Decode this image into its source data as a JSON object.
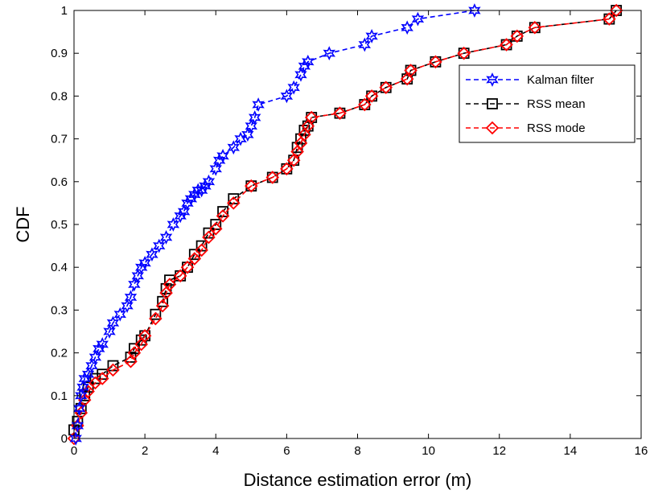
{
  "chart_data": {
    "type": "line",
    "title": "",
    "xlabel": "Distance estimation error (m)",
    "ylabel": "CDF",
    "xlim": [
      0,
      16
    ],
    "ylim": [
      0,
      1
    ],
    "xticks": [
      "0",
      "2",
      "4",
      "6",
      "8",
      "10",
      "12",
      "14",
      "16"
    ],
    "yticks": [
      "0",
      "0.1",
      "0.2",
      "0.3",
      "0.4",
      "0.5",
      "0.6",
      "0.7",
      "0.8",
      "0.9",
      "1"
    ],
    "grid": false,
    "legend_position": "top-right",
    "series": [
      {
        "name": "Kalman filter",
        "color": "#0000ff",
        "marker": "hexagram",
        "line_style": "dashed",
        "x": [
          0.05,
          0.1,
          0.15,
          0.2,
          0.25,
          0.3,
          0.4,
          0.5,
          0.6,
          0.7,
          0.8,
          1.0,
          1.1,
          1.3,
          1.5,
          1.6,
          1.7,
          1.8,
          1.9,
          2.0,
          2.2,
          2.4,
          2.6,
          2.8,
          3.0,
          3.1,
          3.2,
          3.3,
          3.4,
          3.5,
          3.6,
          3.7,
          3.8,
          4.0,
          4.1,
          4.2,
          4.5,
          4.7,
          4.9,
          5.0,
          5.1,
          5.2,
          6.0,
          6.2,
          6.4,
          6.5,
          6.6,
          7.2,
          8.2,
          8.4,
          9.4,
          9.7,
          11.3
        ],
        "y": [
          0.0,
          0.03,
          0.07,
          0.1,
          0.12,
          0.14,
          0.15,
          0.17,
          0.19,
          0.21,
          0.22,
          0.25,
          0.27,
          0.29,
          0.31,
          0.33,
          0.36,
          0.38,
          0.4,
          0.41,
          0.43,
          0.45,
          0.47,
          0.5,
          0.52,
          0.53,
          0.55,
          0.56,
          0.57,
          0.58,
          0.58,
          0.59,
          0.6,
          0.63,
          0.65,
          0.66,
          0.68,
          0.7,
          0.71,
          0.73,
          0.75,
          0.78,
          0.8,
          0.82,
          0.85,
          0.87,
          0.88,
          0.9,
          0.92,
          0.94,
          0.96,
          0.98,
          1.0
        ]
      },
      {
        "name": "RSS mean",
        "color": "#000000",
        "marker": "square",
        "line_style": "dashed",
        "x": [
          0.0,
          0.1,
          0.2,
          0.3,
          0.4,
          0.6,
          0.8,
          1.1,
          1.6,
          1.7,
          1.9,
          2.0,
          2.3,
          2.5,
          2.6,
          2.7,
          3.0,
          3.2,
          3.4,
          3.6,
          3.8,
          4.0,
          4.2,
          4.5,
          5.0,
          5.6,
          6.0,
          6.2,
          6.3,
          6.4,
          6.5,
          6.6,
          6.7,
          7.5,
          8.2,
          8.4,
          8.8,
          9.4,
          9.5,
          10.2,
          11.0,
          12.2,
          12.5,
          13.0,
          15.1,
          15.3
        ],
        "y": [
          0.02,
          0.04,
          0.07,
          0.1,
          0.12,
          0.14,
          0.15,
          0.17,
          0.19,
          0.21,
          0.23,
          0.24,
          0.29,
          0.32,
          0.35,
          0.37,
          0.38,
          0.4,
          0.43,
          0.45,
          0.48,
          0.5,
          0.53,
          0.56,
          0.59,
          0.61,
          0.63,
          0.65,
          0.68,
          0.7,
          0.72,
          0.73,
          0.75,
          0.76,
          0.78,
          0.8,
          0.82,
          0.84,
          0.86,
          0.88,
          0.9,
          0.92,
          0.94,
          0.96,
          0.98,
          1.0
        ]
      },
      {
        "name": "RSS mode",
        "color": "#ff0000",
        "marker": "diamond",
        "line_style": "dashed",
        "x": [
          0.0,
          0.1,
          0.2,
          0.3,
          0.4,
          0.6,
          0.8,
          1.1,
          1.6,
          1.7,
          1.9,
          2.0,
          2.3,
          2.5,
          2.6,
          2.7,
          3.0,
          3.2,
          3.4,
          3.6,
          3.8,
          4.0,
          4.2,
          4.5,
          5.0,
          5.6,
          6.0,
          6.2,
          6.3,
          6.4,
          6.5,
          6.6,
          6.7,
          7.5,
          8.2,
          8.4,
          8.8,
          9.4,
          9.5,
          10.2,
          11.0,
          12.2,
          12.5,
          13.0,
          15.1,
          15.3
        ],
        "y": [
          0.0,
          0.03,
          0.06,
          0.09,
          0.11,
          0.13,
          0.14,
          0.16,
          0.18,
          0.2,
          0.22,
          0.24,
          0.28,
          0.31,
          0.34,
          0.36,
          0.38,
          0.4,
          0.42,
          0.44,
          0.47,
          0.49,
          0.52,
          0.55,
          0.59,
          0.61,
          0.63,
          0.65,
          0.67,
          0.69,
          0.71,
          0.73,
          0.75,
          0.76,
          0.78,
          0.8,
          0.82,
          0.84,
          0.86,
          0.88,
          0.9,
          0.92,
          0.94,
          0.96,
          0.98,
          1.0
        ]
      }
    ]
  }
}
